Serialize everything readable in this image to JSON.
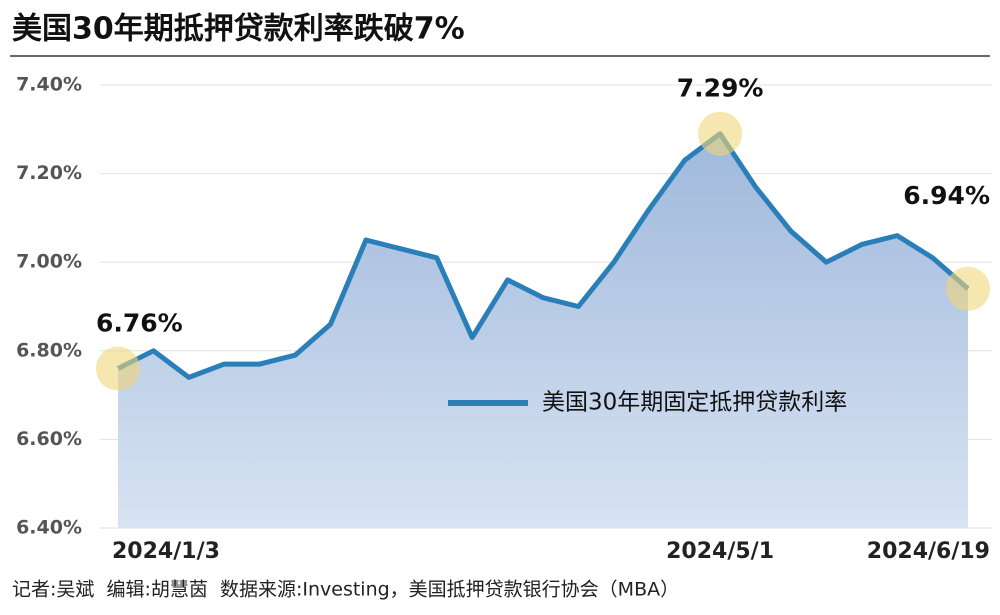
{
  "chart_data": {
    "type": "line",
    "title": "美国30年期抵押贷款利率跌破7%",
    "categories": [
      "2024/1/3",
      null,
      null,
      null,
      null,
      null,
      null,
      null,
      null,
      null,
      null,
      null,
      null,
      null,
      null,
      null,
      null,
      "2024/5/1",
      null,
      null,
      null,
      null,
      null,
      null,
      "2024/6/19"
    ],
    "series": [
      {
        "name": "美国30年期固定抵押贷款利率",
        "color": "#2a7fb8",
        "values": [
          6.76,
          6.8,
          6.74,
          6.77,
          6.77,
          6.79,
          6.86,
          7.05,
          7.03,
          7.01,
          6.83,
          6.96,
          6.92,
          6.9,
          7.0,
          7.12,
          7.23,
          7.29,
          7.17,
          7.07,
          7.0,
          7.04,
          7.06,
          7.01,
          6.94
        ],
        "value_labels": [
          "6.76%",
          null,
          null,
          null,
          null,
          null,
          null,
          null,
          null,
          null,
          null,
          null,
          null,
          null,
          null,
          null,
          null,
          "7.29%",
          null,
          null,
          null,
          null,
          null,
          null,
          "6.94%"
        ]
      }
    ],
    "ylim": [
      6.4,
      7.4
    ],
    "yticks": [
      {
        "value": 6.4,
        "label": "6.40%"
      },
      {
        "value": 6.6,
        "label": "6.60%"
      },
      {
        "value": 6.8,
        "label": "6.80%"
      },
      {
        "value": 7.0,
        "label": "7.00%"
      },
      {
        "value": 7.2,
        "label": "7.20%"
      },
      {
        "value": 7.4,
        "label": "7.40%"
      }
    ],
    "grid": true,
    "footer": "记者:吴斌  编辑:胡慧茵  数据来源:Investing，美国抵押贷款银行协会（MBA）"
  }
}
